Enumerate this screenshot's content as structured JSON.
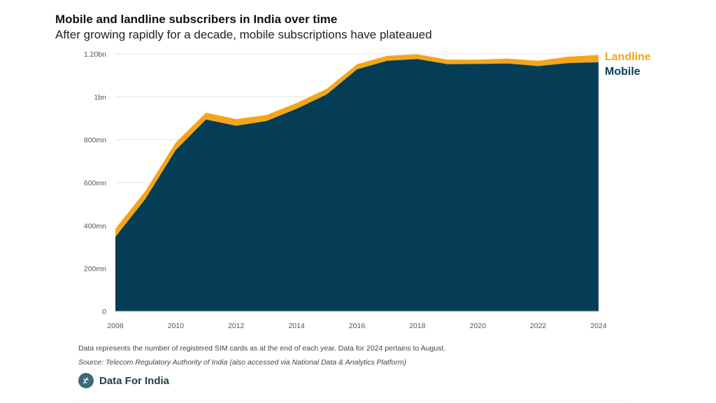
{
  "header": {
    "title": "Mobile and landline subscribers in India over time",
    "subtitle": "After growing rapidly for a decade, mobile subscriptions have plateaued"
  },
  "footer": {
    "note": "Data represents the number of registered SIM cards as at the end of each year. Data for 2024 pertains to August.",
    "source": "Source: Telecom Regulatory Authority of India (also accessed via National Data & Analytics Platform)",
    "brand": "Data For India"
  },
  "colors": {
    "mobile": "#053d57",
    "landline": "#f5a51c",
    "grid": "#e4e4e4",
    "axis_text": "#555555"
  },
  "chart_data": {
    "type": "area",
    "stacked": true,
    "x": [
      2008,
      2009,
      2010,
      2011,
      2012,
      2013,
      2014,
      2015,
      2016,
      2017,
      2018,
      2019,
      2020,
      2021,
      2022,
      2023,
      2024
    ],
    "series": [
      {
        "name": "Mobile",
        "values": [
          347,
          525,
          752,
          894,
          865,
          887,
          944,
          1011,
          1128,
          1168,
          1176,
          1152,
          1153,
          1155,
          1143,
          1157,
          1161
        ]
      },
      {
        "name": "Landline",
        "values": [
          38,
          37,
          35,
          32,
          31,
          28,
          27,
          26,
          24,
          23,
          22,
          21,
          20,
          23,
          25,
          30,
          34
        ]
      }
    ],
    "xlim": [
      2008,
      2024
    ],
    "ylim": [
      0,
      1200
    ],
    "y_ticks": [
      0,
      200,
      400,
      600,
      800,
      1000,
      1200
    ],
    "y_tick_labels": [
      "0",
      "200mn",
      "400mn",
      "600mn",
      "800mn",
      "1bn",
      "1.20bn"
    ],
    "x_ticks": [
      2008,
      2010,
      2012,
      2014,
      2016,
      2018,
      2020,
      2022,
      2024
    ],
    "x_tick_labels": [
      "2008",
      "2010",
      "2012",
      "2014",
      "2016",
      "2018",
      "2020",
      "2022",
      "2024"
    ],
    "grid": true,
    "legend": "right"
  }
}
